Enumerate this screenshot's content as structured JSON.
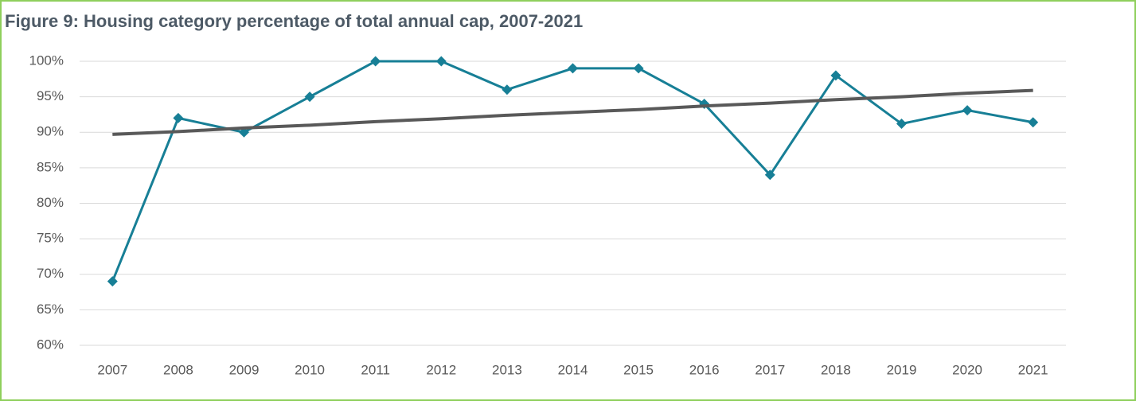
{
  "chart_data": {
    "type": "line",
    "title": "Figure 9: Housing category percentage of total annual cap, 2007-2021",
    "categories": [
      "2007",
      "2008",
      "2009",
      "2010",
      "2011",
      "2012",
      "2013",
      "2014",
      "2015",
      "2016",
      "2017",
      "2018",
      "2019",
      "2020",
      "2021"
    ],
    "series": [
      {
        "color": "#177f96",
        "marker": "diamond",
        "values": [
          69,
          92,
          90,
          95,
          100,
          100,
          96,
          99,
          99,
          94,
          84,
          98,
          91.2,
          93.1,
          91.4
        ]
      },
      {
        "color": "#595959",
        "marker": "none",
        "values": [
          89.7,
          90.1,
          90.6,
          91.0,
          91.5,
          91.9,
          92.4,
          92.8,
          93.2,
          93.7,
          94.1,
          94.6,
          95.0,
          95.5,
          95.9
        ]
      }
    ],
    "ylim": [
      60,
      100
    ],
    "yticks": [
      {
        "value": 60,
        "label": "60%"
      },
      {
        "value": 65,
        "label": "65%"
      },
      {
        "value": 70,
        "label": "70%"
      },
      {
        "value": 75,
        "label": "75%"
      },
      {
        "value": 80,
        "label": "80%"
      },
      {
        "value": 85,
        "label": "85%"
      },
      {
        "value": 90,
        "label": "90%"
      },
      {
        "value": 95,
        "label": "95%"
      },
      {
        "value": 100,
        "label": "100%"
      }
    ],
    "grid": true
  }
}
